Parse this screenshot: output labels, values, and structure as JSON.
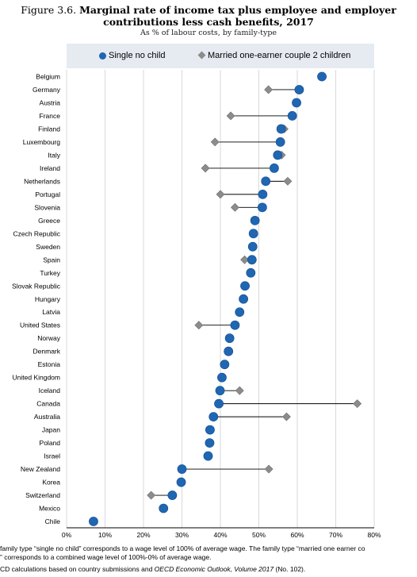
{
  "header": {
    "figure_label": "Figure 3.6.",
    "title_line1": "Marginal rate of income tax plus employee and employer",
    "title_line2": "contributions less cash benefits, 2017",
    "subtitle": "As % of labour costs, by family-type"
  },
  "colors": {
    "single": "#1f66b3",
    "married": "#8c8c8c",
    "legend_bg": "#e6ebf2",
    "grid": "#d9d9d9",
    "connector": "#000000"
  },
  "chart_data": {
    "type": "scatter",
    "orientation": "horizontal-dot-plot",
    "categories": [
      "Belgium",
      "Germany",
      "Austria",
      "France",
      "Finland",
      "Luxembourg",
      "Italy",
      "Ireland",
      "Netherlands",
      "Portugal",
      "Slovenia",
      "Greece",
      "Czech Republic",
      "Sweden",
      "Spain",
      "Turkey",
      "Slovak Republic",
      "Hungary",
      "Latvia",
      "United States",
      "Norway",
      "Denmark",
      "Estonia",
      "United Kingdom",
      "Iceland",
      "Canada",
      "Australia",
      "Japan",
      "Poland",
      "Israel",
      "New Zealand",
      "Korea",
      "Switzerland",
      "Mexico",
      "Chile"
    ],
    "series": [
      {
        "name": "Single no child",
        "marker": "circle",
        "values": [
          66.4,
          60.5,
          59.8,
          58.7,
          55.8,
          55.6,
          54.9,
          54.0,
          51.8,
          51.0,
          50.9,
          49.0,
          48.6,
          48.4,
          48.2,
          47.9,
          46.4,
          46.0,
          45.0,
          43.8,
          42.4,
          42.1,
          41.1,
          40.4,
          39.9,
          39.6,
          38.2,
          37.3,
          37.2,
          36.8,
          30.0,
          29.8,
          27.5,
          25.2,
          7.0
        ]
      },
      {
        "name": "Married one-earner couple 2 children",
        "marker": "diamond",
        "values": [
          66.4,
          52.5,
          59.8,
          42.7,
          56.6,
          38.6,
          55.9,
          36.1,
          57.5,
          40.0,
          43.8,
          49.0,
          48.6,
          48.4,
          46.3,
          47.9,
          46.4,
          46.0,
          45.0,
          34.4,
          42.4,
          42.1,
          41.1,
          40.4,
          45.0,
          75.6,
          57.2,
          37.3,
          37.2,
          36.8,
          52.6,
          29.8,
          22.0,
          25.2,
          7.0
        ]
      }
    ],
    "xlim": [
      0,
      80
    ],
    "xticks": [
      0,
      10,
      20,
      30,
      40,
      50,
      60,
      70,
      80
    ],
    "xtick_labels": [
      "0%",
      "10%",
      "20%",
      "30%",
      "40%",
      "50%",
      "60%",
      "70%",
      "80%"
    ],
    "grid": "vertical",
    "legend_position": "top"
  },
  "footnotes": {
    "line1": "family type “single no child” corresponds to a wage level of 100% of average wage. The family type “married one earner co",
    "line2": "” corresponds to a combined wage level of 100%-0% of average wage.",
    "line3_prefix": "CD calculations based on country submissions and ",
    "line3_italic": "OECD Economic Outlook, Volume 2017",
    "line3_suffix": " (No. 102)."
  }
}
